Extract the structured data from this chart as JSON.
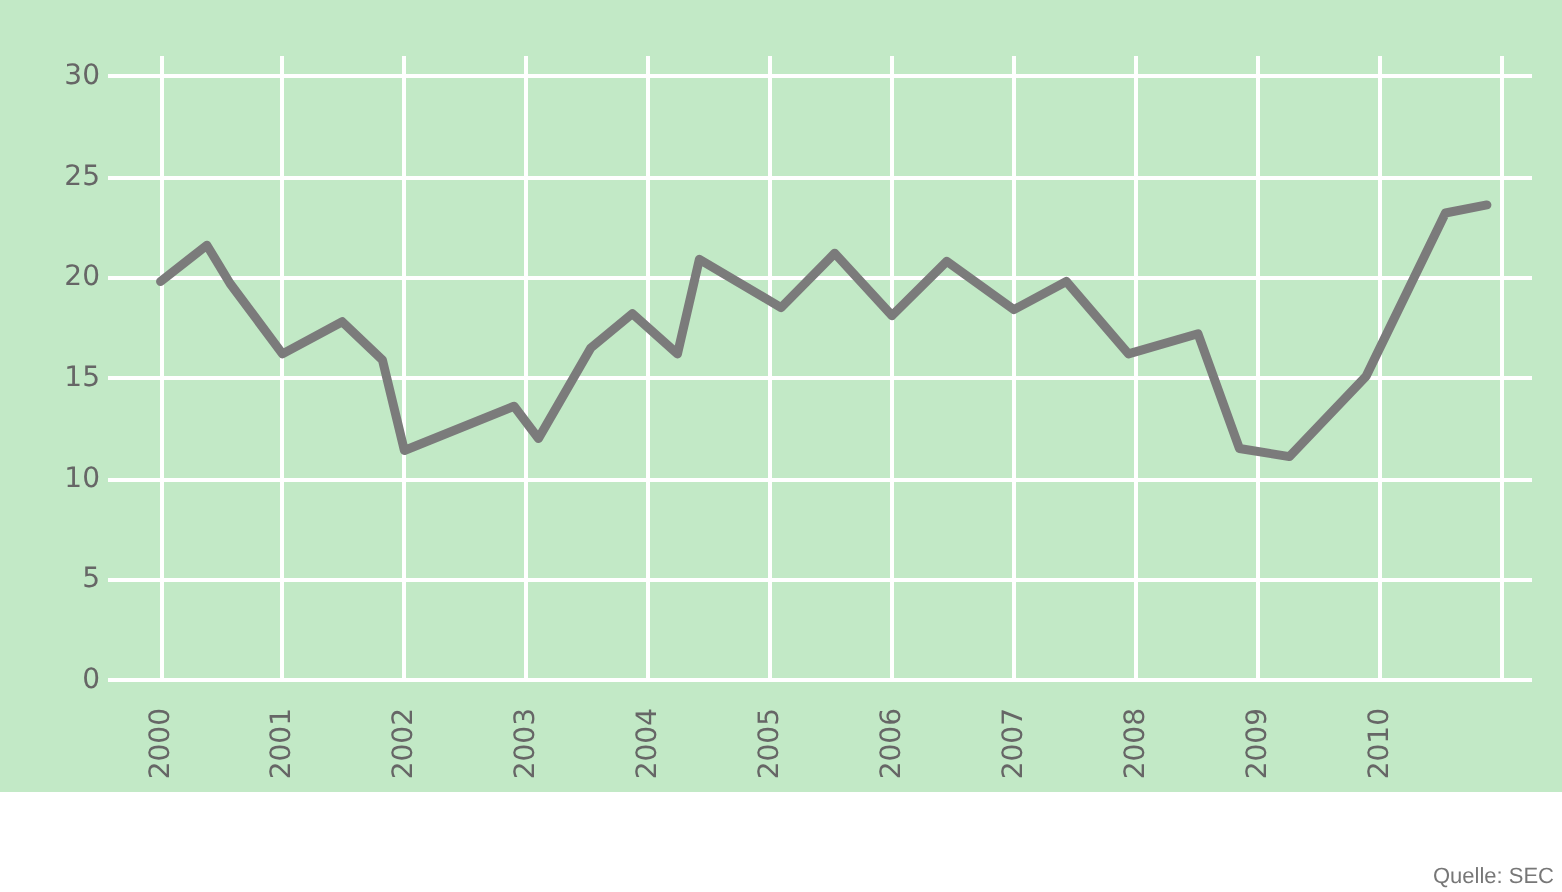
{
  "chart_data": {
    "type": "line",
    "annotations": [
      "Quelle: SEC"
    ],
    "x": [
      2000.0,
      2000.38,
      2000.57,
      2001.0,
      2001.49,
      2001.82,
      2002.0,
      2002.9,
      2003.1,
      2003.53,
      2003.87,
      2004.24,
      2004.42,
      2005.09,
      2005.53,
      2006.0,
      2006.45,
      2007.0,
      2007.43,
      2007.94,
      2008.51,
      2008.85,
      2009.26,
      2009.89,
      2010.54,
      2010.88
    ],
    "series": [
      {
        "color": "#7b7b7b",
        "values": [
          19.8,
          21.6,
          19.7,
          16.2,
          17.8,
          15.9,
          11.4,
          13.6,
          12.0,
          16.5,
          18.2,
          16.2,
          20.9,
          18.5,
          21.2,
          18.1,
          20.8,
          18.4,
          19.8,
          16.2,
          17.2,
          11.5,
          11.1,
          15.1,
          23.2,
          23.6
        ]
      }
    ],
    "xlim": [
      1999.7,
      2011.25
    ],
    "xticks": [
      2000,
      2001,
      2002,
      2003,
      2004,
      2005,
      2006,
      2007,
      2008,
      2009,
      2010,
      {
        "value": 2011,
        "label": null
      }
    ],
    "ylim": [
      0,
      31
    ],
    "yticks": [
      0,
      5,
      10,
      15,
      20,
      25,
      30
    ],
    "grid": true,
    "marker": "none",
    "line_style": "solid"
  }
}
